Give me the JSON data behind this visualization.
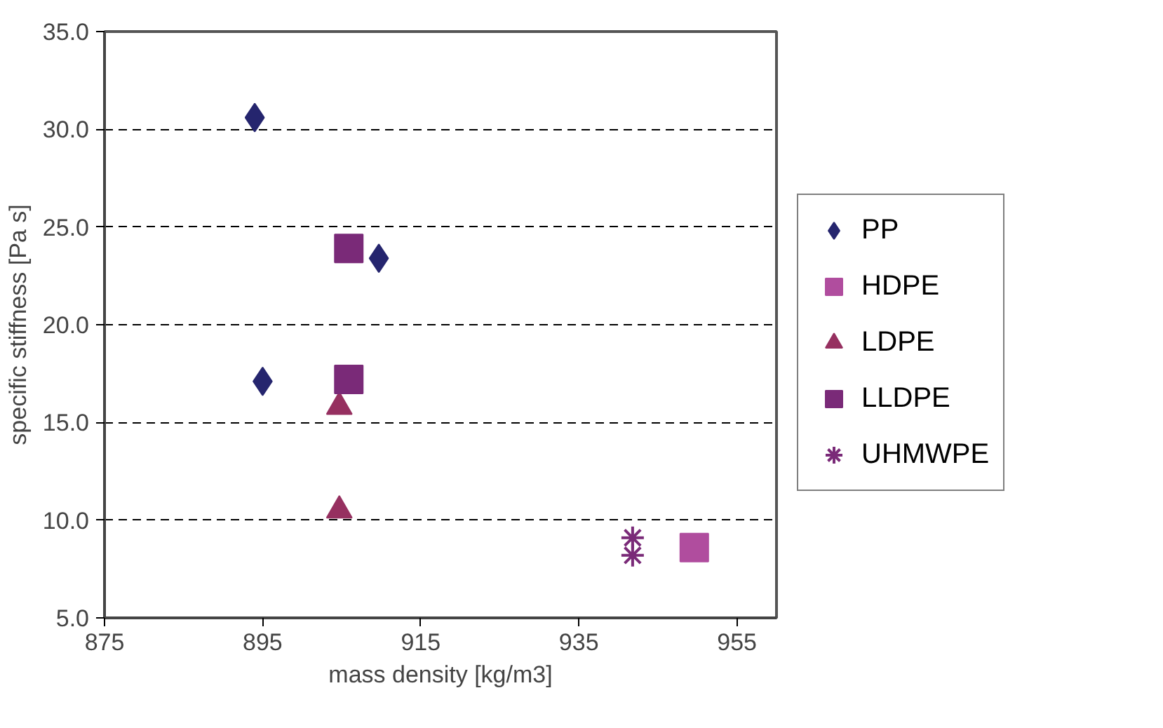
{
  "chart_data": {
    "type": "scatter",
    "xlabel": "mass density [kg/m3]",
    "ylabel": "specific stiffness [Pa s]",
    "xlim": [
      875,
      960
    ],
    "ylim": [
      5,
      35
    ],
    "xticks": [
      875,
      895,
      915,
      935,
      955
    ],
    "yticks": [
      {
        "value": 5,
        "label": "5.0"
      },
      {
        "value": 10,
        "label": "10.0"
      },
      {
        "value": 15,
        "label": "15.0"
      },
      {
        "value": 20,
        "label": "20.0"
      },
      {
        "value": 25,
        "label": "25.0"
      },
      {
        "value": 30,
        "label": "30.0"
      },
      {
        "value": 35,
        "label": "35.0"
      }
    ],
    "grid": "y",
    "legend": "right",
    "series": [
      {
        "name": "PP",
        "color": "#25256e",
        "marker": "diamond",
        "x": [
          894.0,
          895.0,
          909.7
        ],
        "values": [
          30.6,
          17.1,
          23.4
        ]
      },
      {
        "name": "HDPE",
        "color": "#b04d9e",
        "marker": "square",
        "x": [
          949.6
        ],
        "values": [
          8.6
        ]
      },
      {
        "name": "LDPE",
        "color": "#963060",
        "marker": "triangle",
        "x": [
          904.7,
          904.7
        ],
        "values": [
          15.8,
          10.5
        ]
      },
      {
        "name": "LLDPE",
        "color": "#7a2a78",
        "marker": "square",
        "x": [
          905.9,
          905.9
        ],
        "values": [
          23.9,
          17.2
        ]
      },
      {
        "name": "UHMWPE",
        "color": "#7a2a78",
        "marker": "cross",
        "x": [
          941.8,
          941.8
        ],
        "values": [
          9.1,
          8.2
        ]
      }
    ]
  }
}
